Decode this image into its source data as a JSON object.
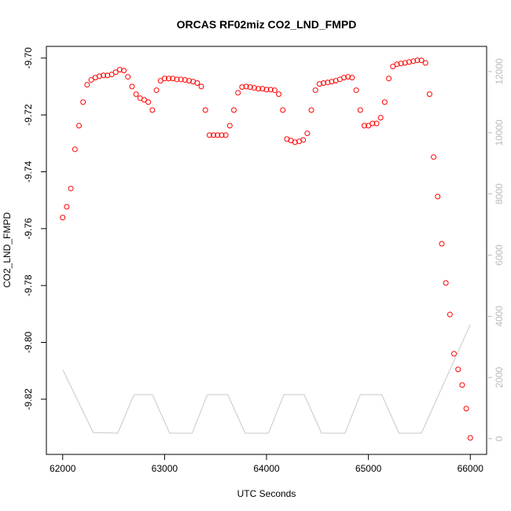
{
  "chart_data": {
    "type": "scatter",
    "title": "ORCAS RF02miz CO2_LND_FMPD",
    "x_label": "UTC Seconds",
    "y_label": "CO2_LND_FMPD",
    "xlim": [
      61840,
      66160
    ],
    "ylim": [
      -9.8394,
      -9.6959
    ],
    "y2lim": [
      -514,
      12822
    ],
    "xticks": [
      62000,
      63000,
      64000,
      65000,
      66000
    ],
    "yticks": [
      {
        "value": -9.82,
        "label": "-9.82"
      },
      {
        "value": -9.8,
        "label": "-9.80"
      },
      {
        "value": -9.78,
        "label": "-9.78"
      },
      {
        "value": -9.76,
        "label": "-9.76"
      },
      {
        "value": -9.74,
        "label": "-9.74"
      },
      {
        "value": -9.72,
        "label": "-9.72"
      },
      {
        "value": -9.7,
        "label": "-9.70"
      }
    ],
    "y2ticks": [
      0,
      2000,
      4000,
      6000,
      8000,
      10000,
      12000
    ],
    "grid": false,
    "series": [
      {
        "type": "scatter",
        "color": "#ff0000",
        "x": [
          62000,
          62040,
          62080,
          62120,
          62160,
          62200,
          62240,
          62280,
          62320,
          62360,
          62400,
          62440,
          62480,
          62520,
          62560,
          62600,
          62640,
          62680,
          62720,
          62760,
          62800,
          62840,
          62880,
          62920,
          62960,
          63000,
          63040,
          63080,
          63120,
          63160,
          63200,
          63240,
          63280,
          63320,
          63360,
          63400,
          63440,
          63480,
          63520,
          63560,
          63600,
          63640,
          63680,
          63720,
          63760,
          63800,
          63840,
          63880,
          63920,
          63960,
          64000,
          64040,
          64080,
          64120,
          64160,
          64200,
          64240,
          64280,
          64320,
          64360,
          64400,
          64440,
          64480,
          64520,
          64560,
          64600,
          64640,
          64680,
          64720,
          64760,
          64800,
          64840,
          64880,
          64920,
          64960,
          65000,
          65040,
          65080,
          65120,
          65160,
          65200,
          65240,
          65280,
          65320,
          65360,
          65400,
          65440,
          65480,
          65520,
          65560,
          65600,
          65640,
          65680,
          65720,
          65760,
          65800,
          65840,
          65880,
          65920,
          65960,
          66000
        ],
        "values": [
          -9.7561,
          -9.7523,
          -9.7459,
          -9.7321,
          -9.7238,
          -9.7155,
          -9.7094,
          -9.7077,
          -9.7069,
          -9.7064,
          -9.7061,
          -9.7061,
          -9.7058,
          -9.705,
          -9.7041,
          -9.7044,
          -9.7066,
          -9.71,
          -9.7127,
          -9.7141,
          -9.7147,
          -9.7155,
          -9.7183,
          -9.7113,
          -9.708,
          -9.7072,
          -9.7072,
          -9.7072,
          -9.7075,
          -9.7075,
          -9.7077,
          -9.708,
          -9.7083,
          -9.7088,
          -9.71,
          -9.7183,
          -9.7271,
          -9.7271,
          -9.7271,
          -9.7271,
          -9.7271,
          -9.7238,
          -9.7183,
          -9.7122,
          -9.7102,
          -9.71,
          -9.7102,
          -9.7105,
          -9.7108,
          -9.7108,
          -9.7111,
          -9.7111,
          -9.7113,
          -9.7127,
          -9.7183,
          -9.7285,
          -9.729,
          -9.7296,
          -9.7293,
          -9.7288,
          -9.7265,
          -9.7183,
          -9.7113,
          -9.7091,
          -9.7088,
          -9.7086,
          -9.7083,
          -9.708,
          -9.7075,
          -9.7069,
          -9.7066,
          -9.7069,
          -9.7113,
          -9.7183,
          -9.7238,
          -9.7238,
          -9.723,
          -9.723,
          -9.721,
          -9.7155,
          -9.7072,
          -9.703,
          -9.7022,
          -9.7019,
          -9.7017,
          -9.7014,
          -9.7011,
          -9.7008,
          -9.7008,
          -9.7017,
          -9.7127,
          -9.7348,
          -9.7487,
          -9.7653,
          -9.7791,
          -9.7902,
          -9.804,
          -9.8095,
          -9.815,
          -9.8233,
          -9.8336
        ]
      },
      {
        "type": "line",
        "color": "#c8c8c8",
        "axis": "y2",
        "x": [
          62000,
          62300,
          62540,
          62700,
          62880,
          63050,
          63270,
          63420,
          63620,
          63790,
          64020,
          64170,
          64370,
          64540,
          64770,
          64920,
          65130,
          65300,
          65520,
          66000
        ],
        "values": [
          2260,
          200,
          180,
          1440,
          1440,
          180,
          180,
          1440,
          1440,
          180,
          180,
          1440,
          1440,
          180,
          180,
          1440,
          1440,
          180,
          180,
          3730
        ]
      }
    ]
  }
}
